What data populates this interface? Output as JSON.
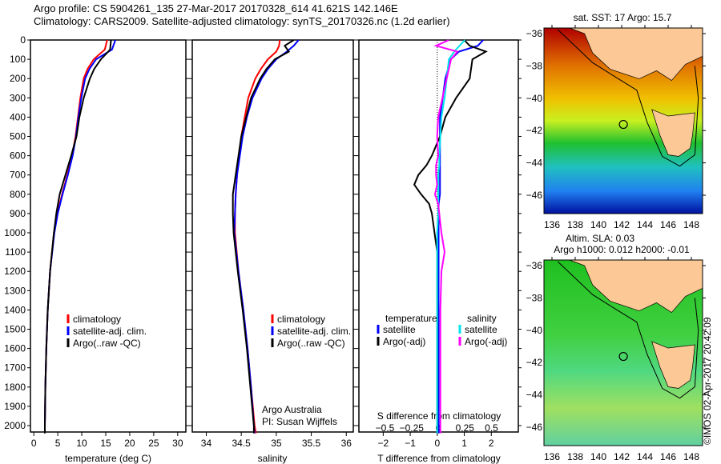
{
  "title_line1": "Argo profile: CS 5904261_135 27-Mar-2017 20170328_614 41.621S 142.146E",
  "title_line2": "Climatology: CARS2009. Satellite-adjusted climatology: synTS_20170326.nc (1.2d earlier)",
  "side_label": "©IMOS 02-Apr-2017 20:42:09",
  "colors": {
    "climatology": "#ff0000",
    "satellite": "#0000ff",
    "argo": "#000000",
    "s_satellite": "#00e5ee",
    "s_argo": "#ff00ff",
    "land": "#fcc895"
  },
  "chart_data": [
    {
      "type": "line",
      "name": "temperature",
      "xlabel": "temperature (deg C)",
      "ylabel": "depth",
      "xlim": [
        -0.7,
        31.7
      ],
      "ylim": [
        2070,
        0
      ],
      "xticks": [
        0,
        5,
        10,
        15,
        20,
        25,
        30
      ],
      "yticks": [
        0,
        100,
        200,
        300,
        400,
        500,
        600,
        700,
        800,
        900,
        1000,
        1100,
        1200,
        1300,
        1400,
        1500,
        1600,
        1700,
        1800,
        1900,
        2000
      ],
      "legend": [
        "climatology",
        "satellite-adj. clim.",
        "Argo(..raw -QC)"
      ],
      "depth": [
        0,
        50,
        100,
        150,
        200,
        300,
        400,
        500,
        600,
        700,
        800,
        900,
        1000,
        1200,
        1400,
        1600,
        1800,
        2000,
        2040
      ],
      "series": [
        {
          "name": "climatology",
          "values": [
            15.3,
            14.8,
            12.5,
            11.2,
            10.4,
            9.7,
            9.2,
            8.7,
            8.0,
            7.0,
            5.9,
            4.9,
            4.2,
            3.4,
            2.9,
            2.6,
            2.4,
            2.3,
            2.3
          ]
        },
        {
          "name": "satellite-adj. clim.",
          "values": [
            17.0,
            16.3,
            13.0,
            11.6,
            10.7,
            9.9,
            9.3,
            8.8,
            8.1,
            7.1,
            6.0,
            5.0,
            4.3,
            3.4,
            2.9,
            2.6,
            2.4,
            2.3,
            2.3
          ]
        },
        {
          "name": "Argo(..raw -QC)",
          "values": [
            16.1,
            15.9,
            14.0,
            12.6,
            11.7,
            10.4,
            9.5,
            8.9,
            7.8,
            6.6,
            5.4,
            4.7,
            4.2,
            3.4,
            2.9,
            2.6,
            2.4,
            2.3,
            2.3
          ]
        }
      ]
    },
    {
      "type": "line",
      "name": "salinity",
      "xlabel": "salinity",
      "xlim": [
        33.8,
        36.1
      ],
      "ylim": [
        2070,
        0
      ],
      "xticks": [
        34,
        34.5,
        35,
        35.5,
        36
      ],
      "legend": [
        "climatology",
        "satellite-adj. clim.",
        "Argo(..raw -QC)"
      ],
      "annotation": [
        "Argo Australia",
        "PI: Susan Wijffels"
      ],
      "depth": [
        0,
        30,
        60,
        100,
        150,
        200,
        300,
        400,
        500,
        600,
        700,
        800,
        900,
        1000,
        1200,
        1400,
        1600,
        1800,
        2000,
        2040
      ],
      "series": [
        {
          "name": "climatology",
          "values": [
            35.05,
            35.04,
            35.0,
            34.88,
            34.78,
            34.7,
            34.6,
            34.55,
            34.5,
            34.47,
            34.44,
            34.42,
            34.41,
            34.41,
            34.46,
            34.53,
            34.59,
            34.64,
            34.69,
            34.71
          ]
        },
        {
          "name": "satellite-adj. clim.",
          "values": [
            35.32,
            35.25,
            35.15,
            35.0,
            34.88,
            34.79,
            34.66,
            34.58,
            34.52,
            34.48,
            34.44,
            34.42,
            34.41,
            34.4,
            34.46,
            34.53,
            34.59,
            34.64,
            34.68,
            34.69
          ]
        },
        {
          "name": "Argo(..raw -QC)",
          "values": [
            35.25,
            35.12,
            35.18,
            34.98,
            34.86,
            34.77,
            34.64,
            34.57,
            34.5,
            34.46,
            34.42,
            34.38,
            34.38,
            34.39,
            34.45,
            34.52,
            34.58,
            34.63,
            34.68,
            34.68
          ]
        }
      ]
    },
    {
      "type": "line",
      "name": "difference",
      "xlabel": "T difference from climatology",
      "xlabel2": "S difference from climatology",
      "xlim": [
        -2.9,
        3.0
      ],
      "ylim": [
        2070,
        0
      ],
      "xticks": [
        -2,
        -1,
        0,
        1,
        2
      ],
      "xticks2": [
        -0.5,
        -0.25,
        0,
        0.25,
        0.5
      ],
      "xticklabels2": [
        "-0.5",
        "-0.25",
        "0",
        "0.25",
        "0.5"
      ],
      "legend_titles": [
        "temperature",
        "salinity"
      ],
      "legend": [
        "satellite",
        "Argo(-adj)",
        "satellite",
        "Argo(-adj)"
      ],
      "depth": [
        0,
        30,
        60,
        100,
        200,
        300,
        400,
        500,
        600,
        650,
        700,
        750,
        800,
        850,
        900,
        1000,
        1100,
        1200,
        1400,
        1600,
        1800,
        2000,
        2040
      ],
      "series": [
        {
          "name": "T satellite",
          "axis": "T",
          "values": [
            1.7,
            1.5,
            0.8,
            0.5,
            0.3,
            0.2,
            0.1,
            0.1,
            0.1,
            0.1,
            0.1,
            0.1,
            0.1,
            0.05,
            0.05,
            0.05,
            0.05,
            0.05,
            0.05,
            0.05,
            0.05,
            0.05,
            0.05
          ]
        },
        {
          "name": "T Argo(-adj)",
          "axis": "T",
          "values": [
            1.0,
            1.2,
            1.8,
            1.3,
            1.2,
            0.7,
            0.3,
            0.1,
            -0.2,
            -0.4,
            -0.7,
            -0.85,
            -0.6,
            -0.3,
            -0.2,
            -0.1,
            0,
            0,
            0,
            0,
            0,
            0,
            0
          ]
        },
        {
          "name": "S satellite",
          "axis": "S",
          "values": [
            0.25,
            0.2,
            0.15,
            0.1,
            0.08,
            0.06,
            0.03,
            0.02,
            0.01,
            0.01,
            0.0,
            0.0,
            0.0,
            0.0,
            0.0,
            -0.01,
            -0.01,
            -0.01,
            -0.01,
            -0.01,
            -0.01,
            -0.01,
            -0.01
          ]
        },
        {
          "name": "S Argo(-adj)",
          "axis": "S",
          "values": [
            0.1,
            -0.02,
            0.18,
            0.12,
            0.08,
            0.04,
            0.0,
            -0.01,
            0.0,
            -0.02,
            -0.02,
            -0.01,
            -0.03,
            0.0,
            0.01,
            0.03,
            0.06,
            0.03,
            0.02,
            0.02,
            0.02,
            0.02,
            0.02
          ]
        }
      ]
    },
    {
      "type": "heatmap",
      "name": "sst-map",
      "title": "sat. SST: 17 Argo: 15.7",
      "xticks": [
        136,
        138,
        140,
        142,
        144,
        146,
        148
      ],
      "yticks": [
        -36,
        -38,
        -40,
        -42,
        -44,
        -46
      ],
      "argo_position": {
        "lon": 142.146,
        "lat": -41.621
      }
    },
    {
      "type": "heatmap",
      "name": "sla-map",
      "title": "Altim. SLA: 0.03",
      "subtitle": "Argo h1000: 0.012 h2000: -0.01",
      "xticks": [
        136,
        138,
        140,
        142,
        144,
        146,
        148
      ],
      "yticks": [
        -36,
        -38,
        -40,
        -42,
        -44,
        -46
      ],
      "argo_position": {
        "lon": 142.146,
        "lat": -41.621
      }
    }
  ]
}
